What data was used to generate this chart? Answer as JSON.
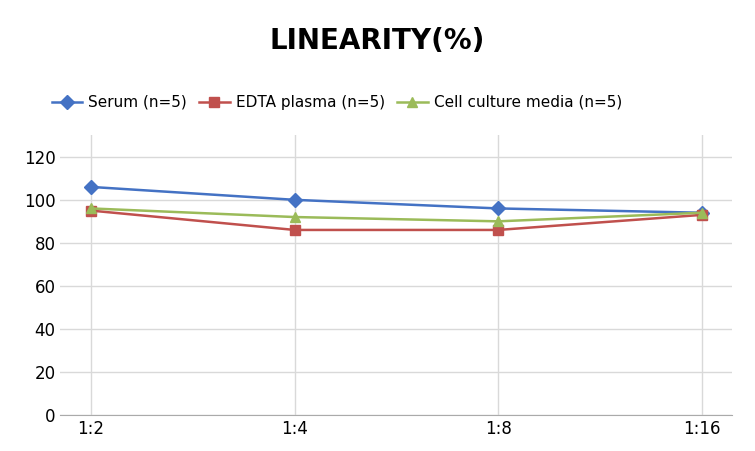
{
  "title": "LINEARITY(%)",
  "x_labels": [
    "1:2",
    "1:4",
    "1:8",
    "1:16"
  ],
  "x_positions": [
    0,
    1,
    2,
    3
  ],
  "series": [
    {
      "label": "Serum (n=5)",
      "values": [
        106,
        100,
        96,
        94
      ],
      "color": "#4472C4",
      "marker": "D",
      "linewidth": 1.8,
      "markersize": 7
    },
    {
      "label": "EDTA plasma (n=5)",
      "values": [
        95,
        86,
        86,
        93
      ],
      "color": "#C0504D",
      "marker": "s",
      "linewidth": 1.8,
      "markersize": 7
    },
    {
      "label": "Cell culture media (n=5)",
      "values": [
        96,
        92,
        90,
        94
      ],
      "color": "#9BBB59",
      "marker": "^",
      "linewidth": 1.8,
      "markersize": 7
    }
  ],
  "ylim": [
    0,
    130
  ],
  "yticks": [
    0,
    20,
    40,
    60,
    80,
    100,
    120
  ],
  "grid_color": "#D9D9D9",
  "background_color": "#FFFFFF",
  "title_fontsize": 20,
  "legend_fontsize": 11,
  "tick_fontsize": 12
}
